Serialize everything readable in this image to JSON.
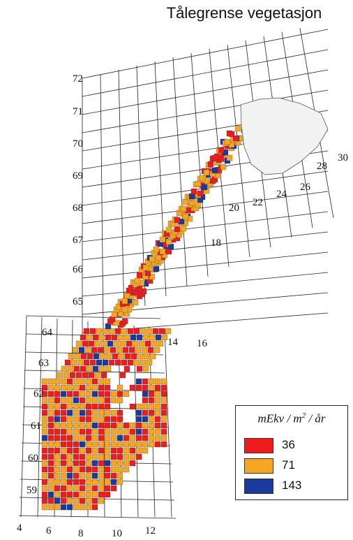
{
  "title": "Tålegrense vegetasjon",
  "latitude_labels": [
    "72",
    "71",
    "70",
    "69",
    "68",
    "67",
    "66",
    "65",
    "64",
    "63",
    "62",
    "61",
    "60",
    "59"
  ],
  "longitude_labels": [
    "4",
    "6",
    "8",
    "10",
    "12",
    "14",
    "16",
    "18",
    "20",
    "22",
    "24",
    "26",
    "28",
    "30"
  ],
  "legend": {
    "title_main": "mEkv / m",
    "title_sup": "2",
    "title_tail": " / år",
    "items": [
      {
        "label": "36",
        "color": "#ee1c1c"
      },
      {
        "label": "71",
        "color": "#f5a623"
      },
      {
        "label": "143",
        "color": "#1a3a9c"
      }
    ]
  },
  "colors": {
    "grid": "#222222",
    "land_outline": "#555555",
    "svalbard_fill": "#f2f2f2"
  }
}
